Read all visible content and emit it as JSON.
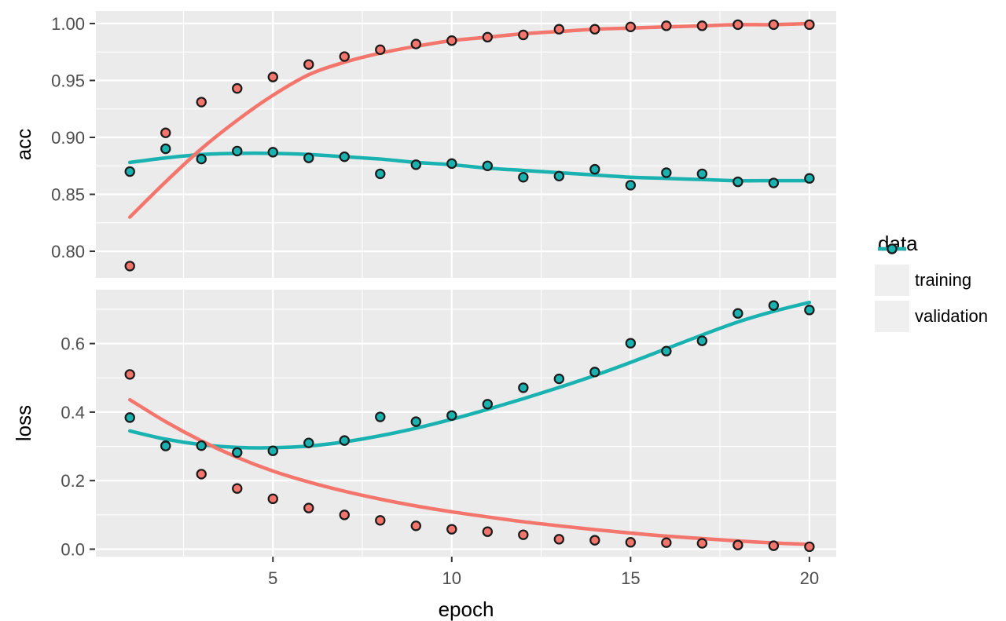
{
  "figure": {
    "colors": {
      "panel_bg": "#EBEBEB",
      "grid": "#FFFFFF",
      "tick_text": "#4D4D4D",
      "tick_mark": "#333333",
      "point_stroke": "#1A1A1A",
      "training": "#F3756C",
      "validation": "#1AB2B0",
      "legend_key_bg": "#EFEFEF"
    }
  },
  "axes": {
    "x_title": "epoch",
    "xlim": [
      0.05,
      20.75
    ],
    "x_ticks": [
      5,
      10,
      15,
      20
    ],
    "x_tick_labels": [
      "5",
      "10",
      "15",
      "20"
    ],
    "x_minor_ticks": [
      2.5,
      7.5,
      12.5,
      17.5
    ]
  },
  "legend": {
    "title": "data",
    "items": [
      {
        "label": "training",
        "color_key": "training"
      },
      {
        "label": "validation",
        "color_key": "validation"
      }
    ]
  },
  "chart_data": [
    {
      "type": "scatter",
      "facet_label": "acc",
      "ylabel": "acc",
      "xlabel": "epoch",
      "grid": true,
      "legend_position": "right",
      "ylim": [
        0.7766,
        1.011
      ],
      "y_ticks": [
        0.8,
        0.85,
        0.9,
        0.95,
        1.0
      ],
      "y_tick_labels": [
        "0.80",
        "0.85",
        "0.90",
        "0.95",
        "1.00"
      ],
      "y_minor_ticks": [
        0.825,
        0.875,
        0.925,
        0.975
      ],
      "x": [
        1,
        2,
        3,
        4,
        5,
        6,
        7,
        8,
        9,
        10,
        11,
        12,
        13,
        14,
        15,
        16,
        17,
        18,
        19,
        20
      ],
      "series": [
        {
          "name": "training",
          "values": [
            0.787,
            0.904,
            0.931,
            0.943,
            0.953,
            0.964,
            0.971,
            0.977,
            0.982,
            0.985,
            0.988,
            0.99,
            0.995,
            0.995,
            0.997,
            0.998,
            0.998,
            0.999,
            0.999,
            0.999
          ],
          "smooth": [
            0.83,
            0.861,
            0.89,
            0.915,
            0.937,
            0.955,
            0.966,
            0.974,
            0.98,
            0.985,
            0.988,
            0.991,
            0.993,
            0.995,
            0.996,
            0.997,
            0.998,
            0.999,
            0.999,
            1.0
          ]
        },
        {
          "name": "validation",
          "values": [
            0.87,
            0.89,
            0.881,
            0.888,
            0.887,
            0.882,
            0.883,
            0.868,
            0.876,
            0.877,
            0.875,
            0.865,
            0.866,
            0.872,
            0.858,
            0.869,
            0.868,
            0.861,
            0.86,
            0.864
          ],
          "smooth": [
            0.878,
            0.882,
            0.885,
            0.886,
            0.886,
            0.885,
            0.883,
            0.881,
            0.878,
            0.876,
            0.873,
            0.871,
            0.869,
            0.867,
            0.865,
            0.864,
            0.863,
            0.862,
            0.862,
            0.862
          ]
        }
      ]
    },
    {
      "type": "scatter",
      "facet_label": "loss",
      "ylabel": "loss",
      "xlabel": "epoch",
      "grid": true,
      "legend_position": "right",
      "ylim": [
        -0.0218,
        0.7572
      ],
      "y_ticks": [
        0.0,
        0.2,
        0.4,
        0.6
      ],
      "y_tick_labels": [
        "0.0",
        "0.2",
        "0.4",
        "0.6"
      ],
      "y_minor_ticks": [
        0.1,
        0.3,
        0.5,
        0.7
      ],
      "x": [
        1,
        2,
        3,
        4,
        5,
        6,
        7,
        8,
        9,
        10,
        11,
        12,
        13,
        14,
        15,
        16,
        17,
        18,
        19,
        20
      ],
      "series": [
        {
          "name": "training",
          "values": [
            0.51,
            0.302,
            0.219,
            0.177,
            0.147,
            0.12,
            0.1,
            0.084,
            0.068,
            0.058,
            0.051,
            0.042,
            0.029,
            0.026,
            0.02,
            0.019,
            0.017,
            0.012,
            0.01,
            0.007
          ],
          "smooth": [
            0.436,
            0.372,
            0.316,
            0.268,
            0.228,
            0.196,
            0.169,
            0.146,
            0.126,
            0.109,
            0.094,
            0.08,
            0.068,
            0.057,
            0.047,
            0.038,
            0.031,
            0.024,
            0.018,
            0.014
          ]
        },
        {
          "name": "validation",
          "values": [
            0.384,
            0.301,
            0.302,
            0.282,
            0.287,
            0.31,
            0.317,
            0.386,
            0.372,
            0.39,
            0.423,
            0.471,
            0.497,
            0.517,
            0.601,
            0.578,
            0.608,
            0.688,
            0.711,
            0.698
          ],
          "smooth": [
            0.345,
            0.321,
            0.305,
            0.297,
            0.296,
            0.301,
            0.313,
            0.331,
            0.353,
            0.379,
            0.408,
            0.439,
            0.472,
            0.507,
            0.545,
            0.585,
            0.625,
            0.663,
            0.694,
            0.72
          ]
        }
      ]
    }
  ]
}
